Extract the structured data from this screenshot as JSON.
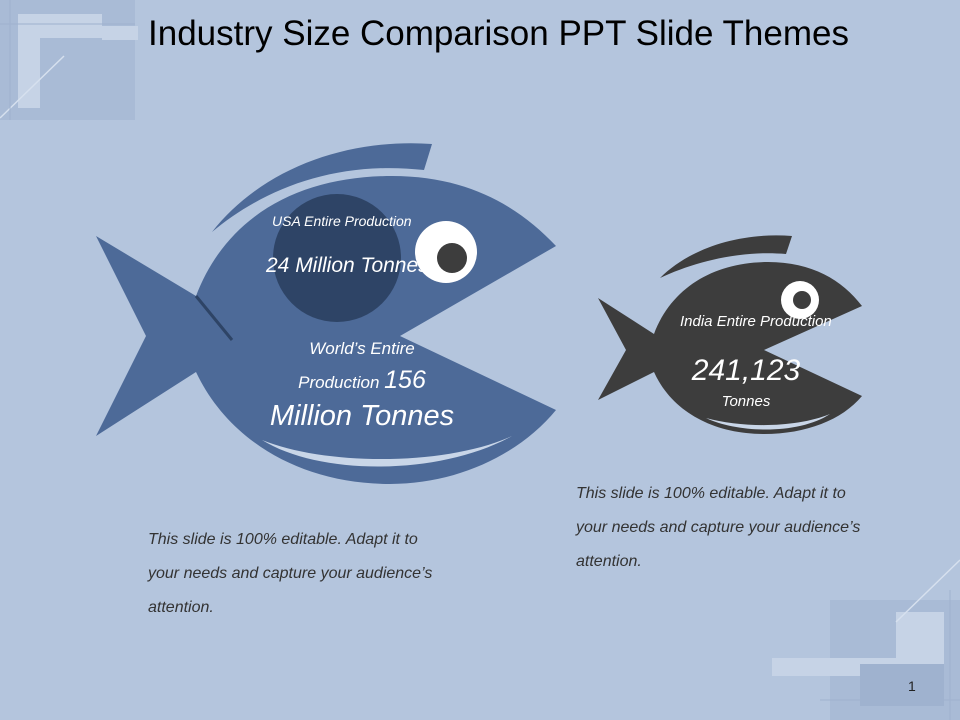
{
  "title": "Industry Size Comparison PPT Slide Themes",
  "big_fish": {
    "usa_label": "USA Entire Production",
    "usa_value": "24 Million Tonnes",
    "world_line1": "World’s Entire",
    "world_line2_prefix": "Production ",
    "world_line2_number": "156",
    "world_line3": "Million Tonnes",
    "body_color": "#4d6a98",
    "circle_color": "#2e4466"
  },
  "small_fish": {
    "label": "India Entire Production",
    "value": "241,123",
    "unit": "Tonnes",
    "body_color": "#3d3d3d"
  },
  "notes": {
    "left": "This slide is 100% editable. Adapt it to your needs and capture your audience’s attention.",
    "right": "This slide is 100% editable. Adapt it to your needs and capture your audience’s attention."
  },
  "page_number": "1",
  "colors": {
    "background": "#b4c5dd",
    "accent_light": "#c9d6e8",
    "accent_mid": "#9fb2cf"
  }
}
